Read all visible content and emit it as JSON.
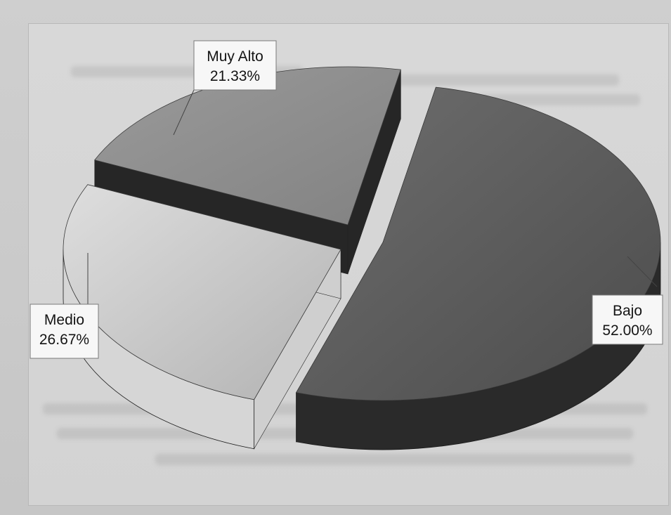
{
  "chart_data": {
    "type": "pie",
    "title": "",
    "slices": [
      {
        "label": "Bajo",
        "percent_text": "52.00%",
        "value": 52.0,
        "color": "#606060"
      },
      {
        "label": "Medio",
        "percent_text": "26.67%",
        "value": 26.67,
        "color": "#b7b7b7"
      },
      {
        "label": "Muy Alto",
        "percent_text": "21.33%",
        "value": 21.33,
        "color": "#8a8a8a"
      }
    ]
  }
}
